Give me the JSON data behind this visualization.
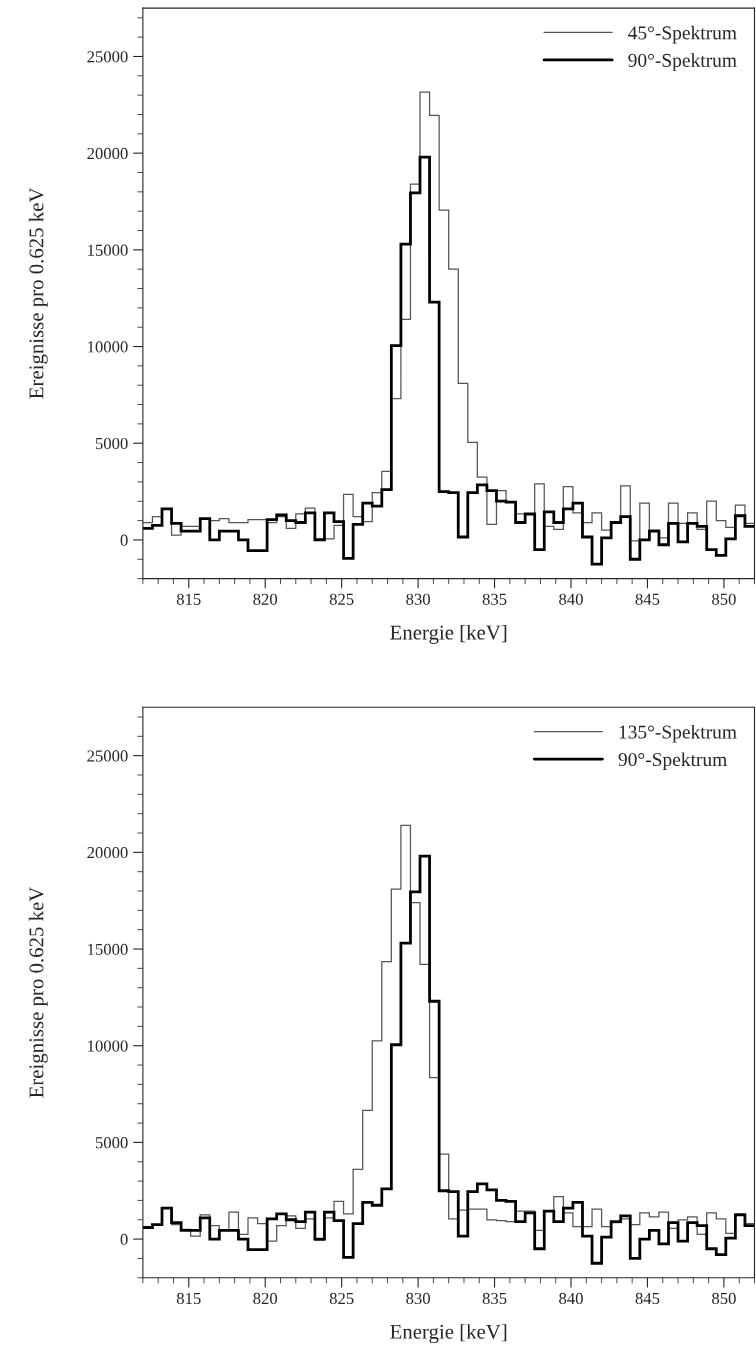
{
  "chart_data": [
    {
      "type": "histogram",
      "xlabel": "Energie [keV]",
      "ylabel": "Ereignisse pro 0.625 keV",
      "bins": [
        812.0,
        812.625,
        813.25,
        813.875,
        814.5,
        815.125,
        815.75,
        816.375,
        817.0,
        817.625,
        818.25,
        818.875,
        819.5,
        820.125,
        820.75,
        821.375,
        822.0,
        822.625,
        823.25,
        823.875,
        824.5,
        825.125,
        825.75,
        826.375,
        827.0,
        827.625,
        828.25,
        828.875,
        829.5,
        830.125,
        830.75,
        831.375,
        832.0,
        832.625,
        833.25,
        833.875,
        834.5,
        835.125,
        835.75,
        836.375,
        837.0,
        837.625,
        838.25,
        838.875,
        839.5,
        840.125,
        840.75,
        841.375,
        842.0,
        842.625,
        843.25,
        843.875,
        844.5,
        845.125,
        845.75,
        846.375,
        847.0,
        847.625,
        848.25,
        848.875,
        849.5,
        850.125,
        850.75,
        851.375,
        852.0
      ],
      "series": [
        {
          "name": "45°-Spektrum",
          "color": "#555555",
          "values": [
            900,
            1200,
            1600,
            250,
            700,
            700,
            1100,
            1000,
            1100,
            900,
            900,
            1050,
            1050,
            900,
            1200,
            600,
            1350,
            1650,
            50,
            50,
            750,
            2350,
            1200,
            950,
            2450,
            3550,
            7300,
            11400,
            18400,
            23150,
            21950,
            17050,
            14000,
            8100,
            5050,
            3250,
            800,
            2550,
            1950,
            1350,
            1300,
            2900,
            700,
            550,
            2750,
            1400,
            900,
            1400,
            500,
            850,
            2800,
            -50,
            1900,
            500,
            100,
            1900,
            850,
            1400,
            550,
            2000,
            1000,
            650,
            1800,
            850
          ]
        },
        {
          "name": "90°-Spektrum",
          "color": "#000000",
          "values": [
            600,
            750,
            1600,
            850,
            450,
            450,
            1100,
            0,
            450,
            450,
            0,
            -550,
            -550,
            1050,
            1300,
            1000,
            900,
            1400,
            0,
            1400,
            950,
            -950,
            800,
            1900,
            1750,
            2600,
            10050,
            15300,
            17950,
            19800,
            12300,
            2500,
            2450,
            150,
            2450,
            2850,
            2550,
            2000,
            1950,
            900,
            1350,
            -500,
            1450,
            900,
            1600,
            1900,
            150,
            -1250,
            100,
            900,
            1200,
            -1000,
            0,
            450,
            -250,
            850,
            -100,
            850,
            700,
            -500,
            -800,
            50,
            1250,
            700
          ]
        }
      ],
      "xlim": [
        812,
        852
      ],
      "xticks": [
        815,
        820,
        825,
        830,
        835,
        840,
        845,
        850
      ],
      "ylim": [
        -2000,
        27500
      ],
      "yticks": [
        0,
        5000,
        10000,
        15000,
        20000,
        25000
      ],
      "legend": "top right",
      "grid": false
    },
    {
      "type": "histogram",
      "xlabel": "Energie [keV]",
      "ylabel": "Ereignisse pro 0.625 keV",
      "bins": [
        812.0,
        812.625,
        813.25,
        813.875,
        814.5,
        815.125,
        815.75,
        816.375,
        817.0,
        817.625,
        818.25,
        818.875,
        819.5,
        820.125,
        820.75,
        821.375,
        822.0,
        822.625,
        823.25,
        823.875,
        824.5,
        825.125,
        825.75,
        826.375,
        827.0,
        827.625,
        828.25,
        828.875,
        829.5,
        830.125,
        830.75,
        831.375,
        832.0,
        832.625,
        833.25,
        833.875,
        834.5,
        835.125,
        835.75,
        836.375,
        837.0,
        837.625,
        838.25,
        838.875,
        839.5,
        840.125,
        840.75,
        841.375,
        842.0,
        842.625,
        843.25,
        843.875,
        844.5,
        845.125,
        845.75,
        846.375,
        847.0,
        847.625,
        848.25,
        848.875,
        849.5,
        850.125,
        850.75,
        851.375,
        852.0
      ],
      "series": [
        {
          "name": "135°-Spektrum",
          "color": "#555555",
          "values": [
            600,
            750,
            1600,
            750,
            500,
            150,
            1250,
            700,
            450,
            1400,
            250,
            1100,
            800,
            -100,
            700,
            1200,
            550,
            1050,
            -50,
            1100,
            1950,
            1300,
            3600,
            6650,
            10250,
            14350,
            18100,
            21400,
            17400,
            14200,
            8350,
            4400,
            1050,
            1500,
            1550,
            1550,
            1000,
            950,
            900,
            1450,
            1450,
            450,
            1450,
            2200,
            1350,
            650,
            650,
            1550,
            650,
            850,
            1050,
            750,
            1350,
            1150,
            1400,
            550,
            1000,
            1150,
            250,
            1350,
            1050,
            300,
            1300,
            800
          ]
        },
        {
          "name": "90°-Spektrum",
          "color": "#000000",
          "values": [
            600,
            750,
            1600,
            850,
            450,
            450,
            1100,
            0,
            450,
            450,
            0,
            -550,
            -550,
            1050,
            1300,
            1000,
            900,
            1400,
            0,
            1400,
            950,
            -950,
            800,
            1900,
            1750,
            2600,
            10050,
            15300,
            17950,
            19800,
            12300,
            2500,
            2450,
            150,
            2450,
            2850,
            2550,
            2000,
            1950,
            900,
            1350,
            -500,
            1450,
            900,
            1600,
            1900,
            150,
            -1250,
            100,
            900,
            1200,
            -1000,
            0,
            450,
            -250,
            850,
            -100,
            850,
            700,
            -500,
            -800,
            50,
            1250,
            700
          ]
        }
      ],
      "xlim": [
        812,
        852
      ],
      "xticks": [
        815,
        820,
        825,
        830,
        835,
        840,
        845,
        850
      ],
      "ylim": [
        -2000,
        27500
      ],
      "yticks": [
        0,
        5000,
        10000,
        15000,
        20000,
        25000
      ],
      "legend": "top right",
      "grid": false
    }
  ]
}
